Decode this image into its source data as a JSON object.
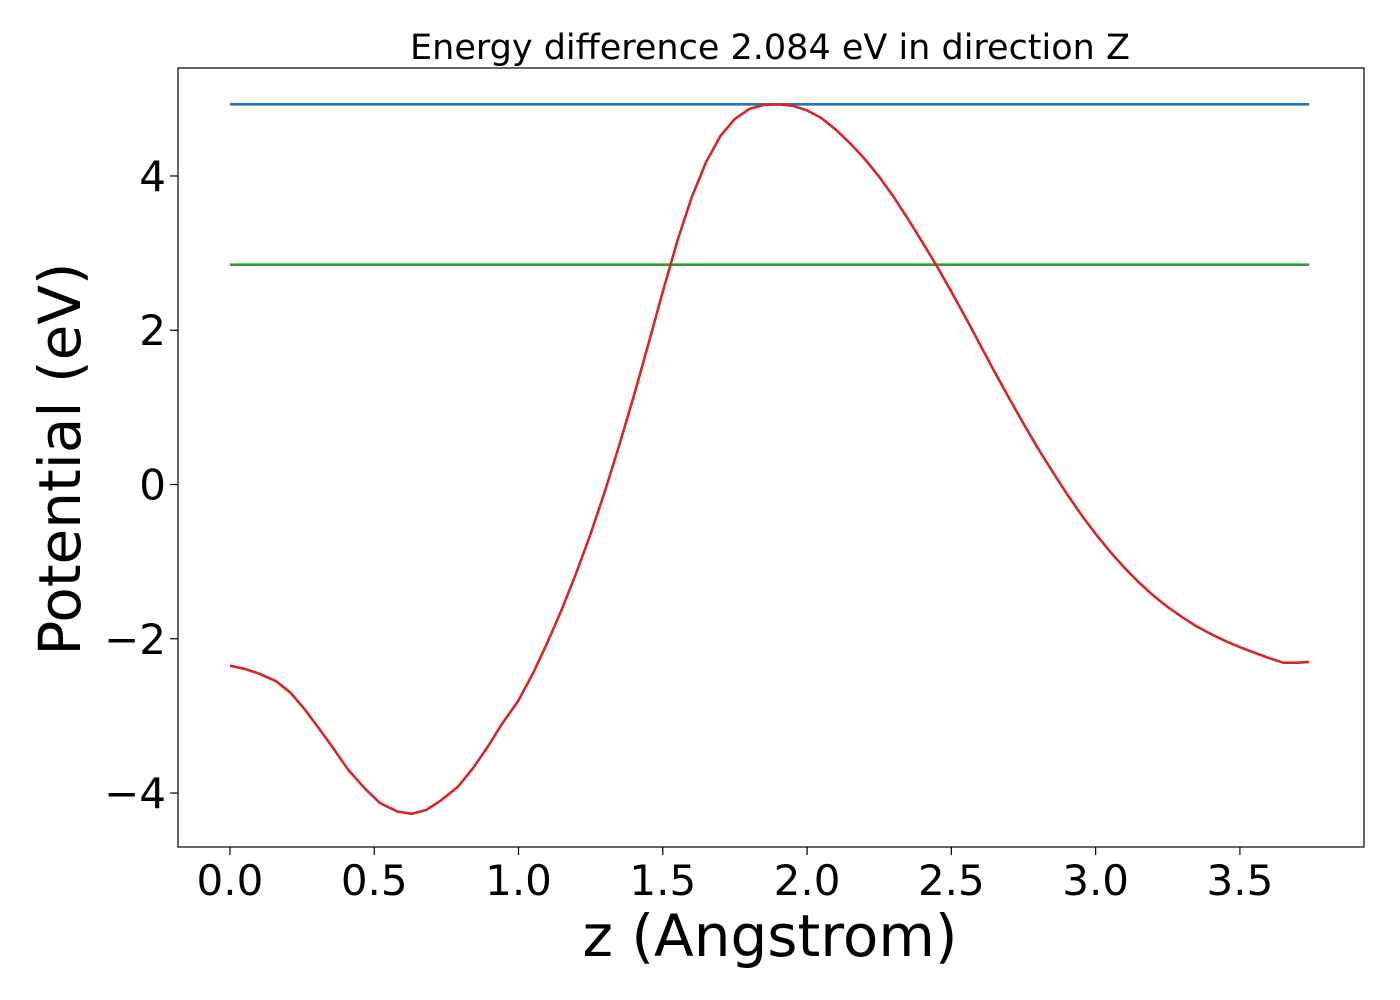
{
  "chart_data": {
    "type": "line",
    "title": "Energy difference 2.084 eV in direction Z",
    "xlabel": "z (Angstrom)",
    "ylabel": "Potential (eV)",
    "xlim": [
      -0.18,
      3.93
    ],
    "ylim": [
      -4.7,
      5.4
    ],
    "xticks": [
      0.0,
      0.5,
      1.0,
      1.5,
      2.0,
      2.5,
      3.0,
      3.5
    ],
    "xtick_labels": [
      "0.0",
      "0.5",
      "1.0",
      "1.5",
      "2.0",
      "2.5",
      "3.0",
      "3.5"
    ],
    "yticks": [
      -4,
      -2,
      0,
      2,
      4
    ],
    "ytick_labels": [
      "−4",
      "−2",
      "0",
      "2",
      "4"
    ],
    "grid": false,
    "series": [
      {
        "color": "#1f77b4",
        "x": [
          0.0,
          3.74
        ],
        "y": [
          4.93,
          4.93
        ]
      },
      {
        "color": "#2ca02c",
        "x": [
          0.0,
          3.74
        ],
        "y": [
          2.85,
          2.85
        ]
      },
      {
        "color": "#d62728",
        "x": [
          0.0,
          0.05,
          0.1,
          0.16,
          0.21,
          0.26,
          0.31,
          0.36,
          0.41,
          0.47,
          0.52,
          0.58,
          0.63,
          0.68,
          0.73,
          0.79,
          0.84,
          0.89,
          0.94,
          1.0,
          1.05,
          1.1,
          1.15,
          1.2,
          1.25,
          1.3,
          1.35,
          1.4,
          1.45,
          1.5,
          1.55,
          1.6,
          1.65,
          1.7,
          1.75,
          1.8,
          1.85,
          1.9,
          1.95,
          2.0,
          2.05,
          2.1,
          2.15,
          2.2,
          2.25,
          2.3,
          2.35,
          2.4,
          2.45,
          2.5,
          2.55,
          2.6,
          2.65,
          2.7,
          2.75,
          2.8,
          2.85,
          2.9,
          2.95,
          3.0,
          3.05,
          3.1,
          3.15,
          3.2,
          3.25,
          3.3,
          3.35,
          3.4,
          3.45,
          3.5,
          3.55,
          3.6,
          3.65,
          3.7,
          3.74
        ],
        "y": [
          -2.35,
          -2.39,
          -2.45,
          -2.55,
          -2.7,
          -2.92,
          -3.17,
          -3.43,
          -3.7,
          -3.95,
          -4.13,
          -4.24,
          -4.27,
          -4.22,
          -4.1,
          -3.92,
          -3.69,
          -3.42,
          -3.12,
          -2.8,
          -2.45,
          -2.05,
          -1.62,
          -1.15,
          -0.64,
          -0.08,
          0.52,
          1.15,
          1.82,
          2.5,
          3.15,
          3.72,
          4.18,
          4.52,
          4.74,
          4.87,
          4.92,
          4.93,
          4.91,
          4.85,
          4.75,
          4.6,
          4.42,
          4.22,
          3.99,
          3.73,
          3.44,
          3.14,
          2.83,
          2.5,
          2.16,
          1.81,
          1.46,
          1.12,
          0.79,
          0.47,
          0.17,
          -0.12,
          -0.39,
          -0.64,
          -0.87,
          -1.08,
          -1.27,
          -1.44,
          -1.59,
          -1.72,
          -1.84,
          -1.94,
          -2.03,
          -2.11,
          -2.18,
          -2.25,
          -2.31,
          -2.31,
          -2.3
        ]
      }
    ]
  }
}
